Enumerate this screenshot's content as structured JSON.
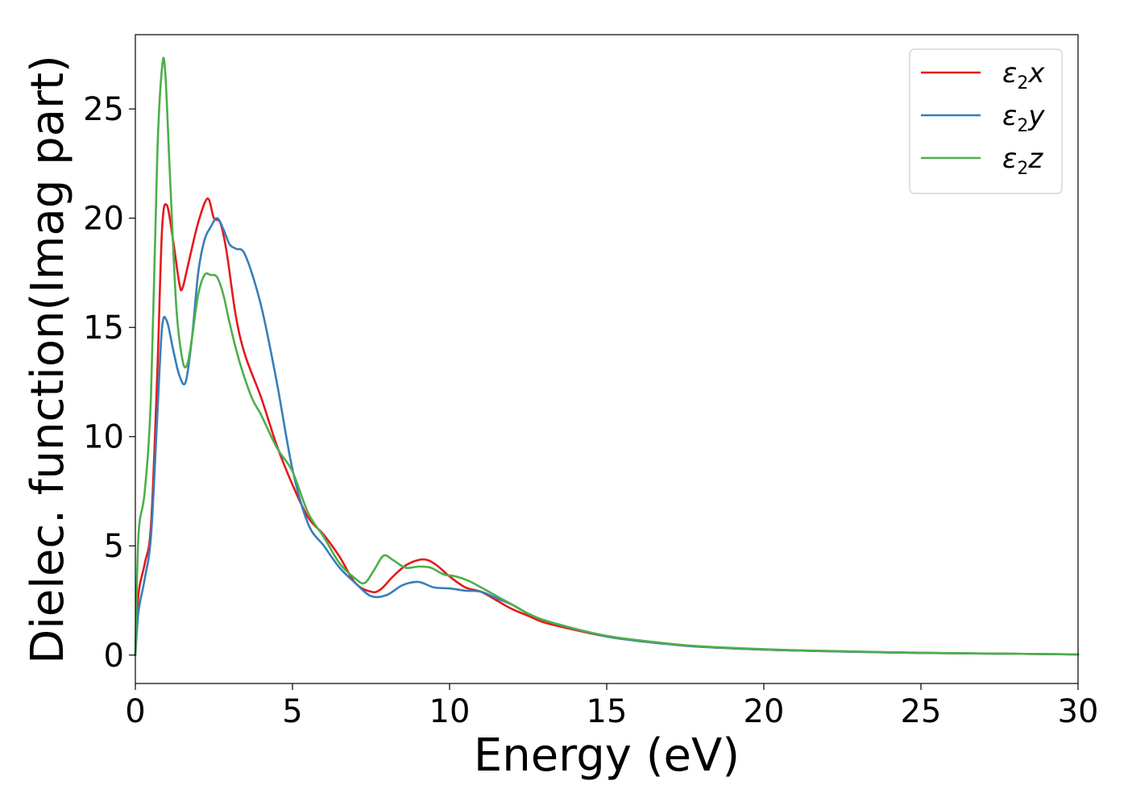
{
  "chart_data": {
    "type": "line",
    "title": "",
    "xlabel": "Energy (eV)",
    "ylabel": "Dielec. function(Imag part)",
    "xlim": [
      0,
      30
    ],
    "ylim": [
      -1.3,
      28.4
    ],
    "xticks": [
      0,
      5,
      10,
      15,
      20,
      25,
      30
    ],
    "yticks": [
      0,
      5,
      10,
      15,
      20,
      25
    ],
    "grid": false,
    "legend_position": "top-right",
    "series": [
      {
        "name": "ε2x",
        "legend": {
          "base": "ε",
          "sub": "2",
          "suffix": "x"
        },
        "color": "#e41a1c",
        "x": [
          0,
          0.1,
          0.3,
          0.5,
          0.7,
          0.85,
          1.0,
          1.2,
          1.4,
          1.5,
          1.7,
          2.0,
          2.3,
          2.5,
          2.7,
          2.9,
          3.2,
          3.5,
          4.0,
          4.5,
          5.0,
          5.5,
          6.0,
          6.5,
          7.0,
          7.5,
          7.8,
          8.2,
          8.6,
          9.0,
          9.3,
          9.6,
          10.0,
          10.5,
          11.0,
          11.5,
          12.0,
          12.5,
          13.0,
          14.0,
          15.0,
          16.0,
          17.0,
          18.0,
          20.0,
          22.0,
          25.0,
          28.0,
          30.0
        ],
        "values": [
          0,
          2.8,
          4.2,
          6.0,
          13.0,
          19.5,
          20.6,
          19.0,
          17.0,
          16.8,
          18.0,
          19.8,
          20.9,
          20.0,
          19.8,
          18.5,
          15.5,
          13.7,
          11.8,
          9.6,
          7.8,
          6.3,
          5.5,
          4.5,
          3.3,
          2.9,
          3.0,
          3.6,
          4.1,
          4.35,
          4.35,
          4.1,
          3.6,
          3.1,
          2.9,
          2.5,
          2.1,
          1.8,
          1.5,
          1.15,
          0.85,
          0.65,
          0.5,
          0.38,
          0.25,
          0.18,
          0.1,
          0.06,
          0.03
        ]
      },
      {
        "name": "ε2y",
        "legend": {
          "base": "ε",
          "sub": "2",
          "suffix": "y"
        },
        "color": "#377eb8",
        "x": [
          0,
          0.1,
          0.3,
          0.5,
          0.7,
          0.85,
          1.0,
          1.2,
          1.4,
          1.6,
          1.8,
          2.0,
          2.2,
          2.4,
          2.6,
          2.8,
          3.0,
          3.2,
          3.5,
          4.0,
          4.5,
          5.0,
          5.5,
          6.0,
          6.5,
          7.0,
          7.5,
          8.0,
          8.5,
          9.0,
          9.5,
          10.0,
          10.5,
          11.0,
          11.5,
          12.0,
          12.5,
          13.0,
          14.0,
          15.0,
          16.0,
          17.0,
          18.0,
          20.0,
          22.0,
          25.0,
          28.0,
          30.0
        ],
        "values": [
          0,
          2.0,
          3.5,
          5.5,
          11.0,
          15.0,
          15.3,
          14.0,
          12.8,
          12.5,
          14.5,
          17.5,
          19.0,
          19.6,
          20.0,
          19.5,
          18.8,
          18.6,
          18.3,
          16.0,
          12.5,
          8.5,
          6.0,
          5.0,
          4.0,
          3.3,
          2.7,
          2.75,
          3.2,
          3.35,
          3.1,
          3.05,
          2.95,
          2.9,
          2.6,
          2.3,
          1.9,
          1.6,
          1.2,
          0.85,
          0.65,
          0.5,
          0.38,
          0.25,
          0.18,
          0.1,
          0.06,
          0.03
        ]
      },
      {
        "name": "ε2z",
        "legend": {
          "base": "ε",
          "sub": "2",
          "suffix": "z"
        },
        "color": "#4daf4a",
        "x": [
          0,
          0.1,
          0.3,
          0.5,
          0.7,
          0.85,
          0.95,
          1.1,
          1.3,
          1.5,
          1.65,
          1.8,
          2.0,
          2.2,
          2.4,
          2.6,
          2.8,
          3.0,
          3.3,
          3.7,
          4.0,
          4.5,
          5.0,
          5.5,
          6.0,
          6.5,
          7.0,
          7.3,
          7.6,
          7.9,
          8.2,
          8.6,
          9.0,
          9.4,
          9.8,
          10.2,
          10.6,
          11.0,
          11.5,
          12.0,
          12.5,
          13.0,
          14.0,
          15.0,
          16.0,
          17.0,
          18.0,
          20.0,
          22.0,
          25.0,
          28.0,
          30.0
        ],
        "values": [
          0,
          5.5,
          7.5,
          12.0,
          23.0,
          26.9,
          26.7,
          22.0,
          16.0,
          13.5,
          13.3,
          14.5,
          16.5,
          17.4,
          17.4,
          17.3,
          16.5,
          15.2,
          13.5,
          11.8,
          11.0,
          9.5,
          8.4,
          6.5,
          5.4,
          4.2,
          3.5,
          3.3,
          3.9,
          4.55,
          4.35,
          4.0,
          4.05,
          4.0,
          3.7,
          3.6,
          3.4,
          3.1,
          2.7,
          2.3,
          1.9,
          1.6,
          1.2,
          0.88,
          0.68,
          0.52,
          0.4,
          0.27,
          0.19,
          0.11,
          0.06,
          0.03
        ]
      }
    ]
  }
}
